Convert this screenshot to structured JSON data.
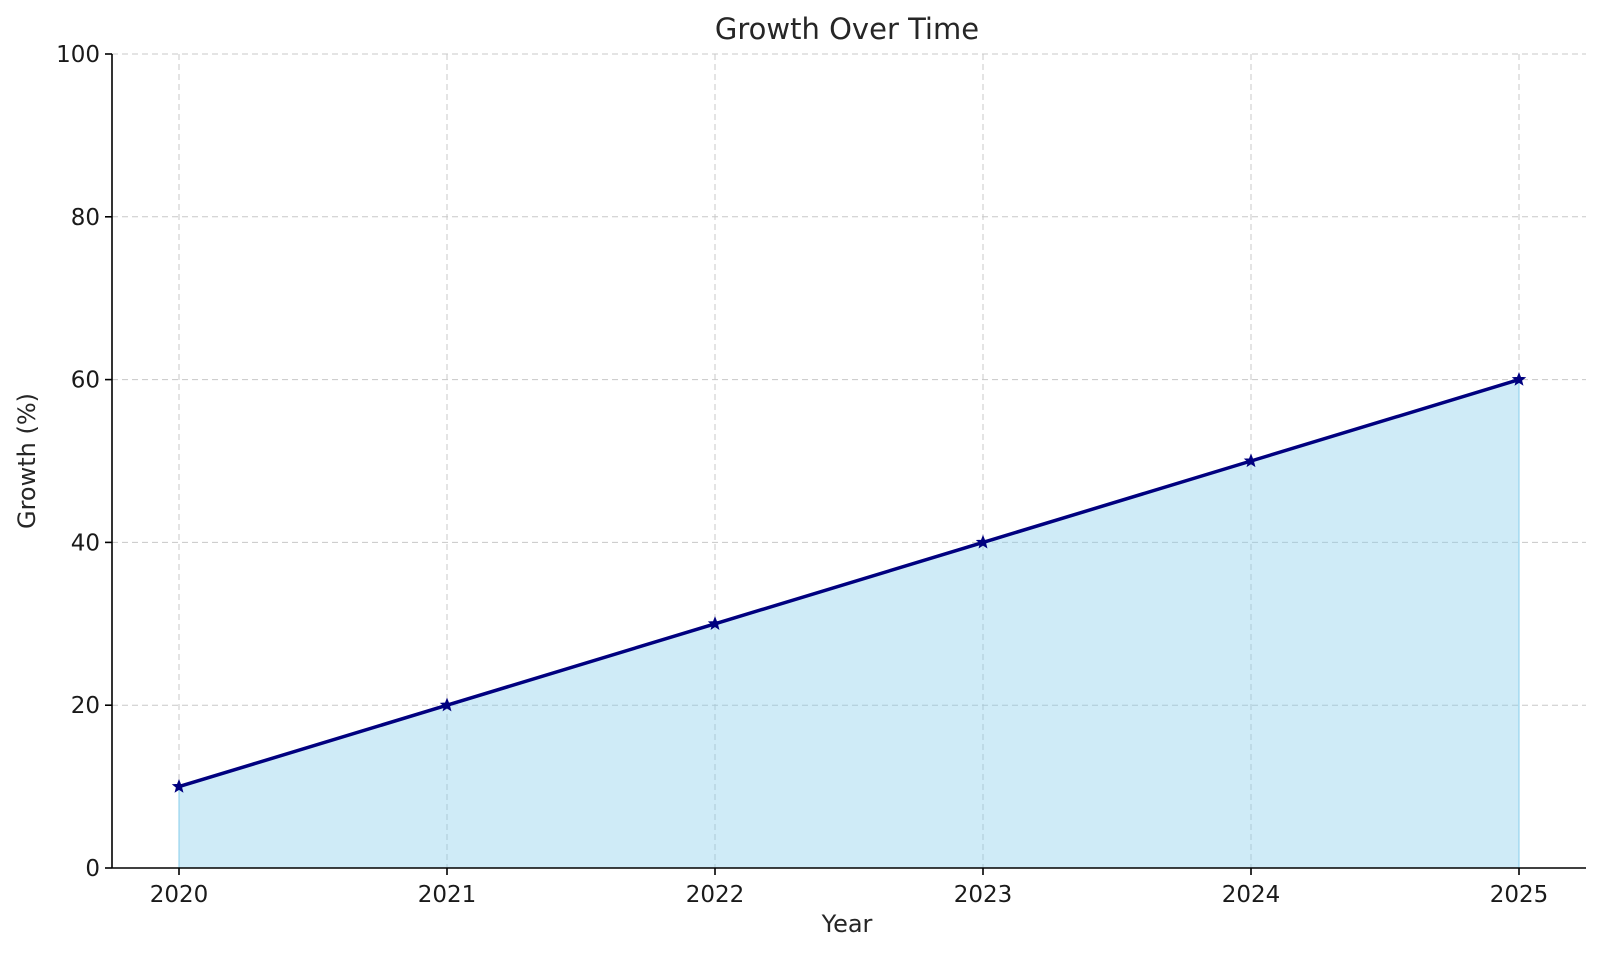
{
  "chart_data": {
    "type": "area",
    "title": "Growth Over Time",
    "xlabel": "Year",
    "ylabel": "Growth (%)",
    "x": [
      2020,
      2021,
      2022,
      2023,
      2024,
      2025
    ],
    "x_tick_labels": [
      "2020",
      "2021",
      "2022",
      "2023",
      "2024",
      "2025"
    ],
    "series": [
      {
        "values": [
          10,
          20,
          30,
          40,
          50,
          60
        ]
      }
    ],
    "xlim": [
      2019.75,
      2025.25
    ],
    "ylim": [
      0,
      100
    ],
    "y_ticks": [
      0,
      20,
      40,
      60,
      80,
      100
    ],
    "y_tick_labels": [
      "0",
      "20",
      "40",
      "60",
      "80",
      "100"
    ],
    "grid": true,
    "marker": "star",
    "colors": {
      "line": "#00007f",
      "fill": "#87ceeb",
      "grid": "#c8c8c8",
      "text": "#262626"
    }
  }
}
